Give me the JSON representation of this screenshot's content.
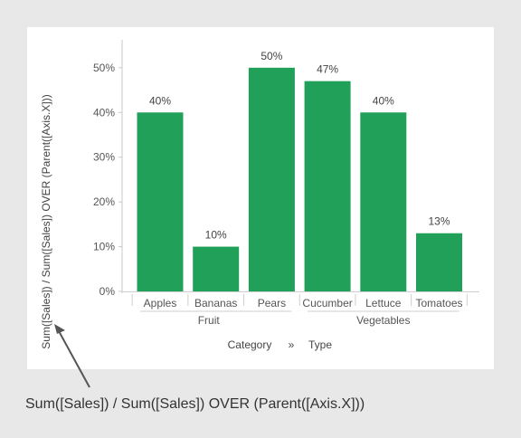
{
  "chart_data": {
    "type": "bar",
    "categories": [
      "Apples",
      "Bananas",
      "Pears",
      "Cucumber",
      "Lettuce",
      "Tomatoes"
    ],
    "groups": [
      {
        "label": "Fruit",
        "categories": [
          "Apples",
          "Bananas",
          "Pears"
        ]
      },
      {
        "label": "Vegetables",
        "categories": [
          "Cucumber",
          "Lettuce",
          "Tomatoes"
        ]
      }
    ],
    "values": [
      40,
      10,
      50,
      47,
      40,
      13
    ],
    "data_labels": [
      "40%",
      "10%",
      "50%",
      "47%",
      "40%",
      "13%"
    ],
    "yticks": [
      0,
      10,
      20,
      30,
      40,
      50
    ],
    "ytick_labels": [
      "0%",
      "10%",
      "20%",
      "30%",
      "40%",
      "50%"
    ],
    "ylim": [
      0,
      53
    ],
    "ylabel": "Sum([Sales]) / Sum([Sales]) OVER (Parent([Axis.X]))",
    "xlabel_parts": [
      "Category",
      "»",
      "Type"
    ],
    "bar_color": "#21a05a",
    "grid": false,
    "legend": "none"
  },
  "annotation": {
    "caption": "Sum([Sales]) / Sum([Sales]) OVER (Parent([Axis.X]))",
    "arrow_color": "#555555"
  }
}
